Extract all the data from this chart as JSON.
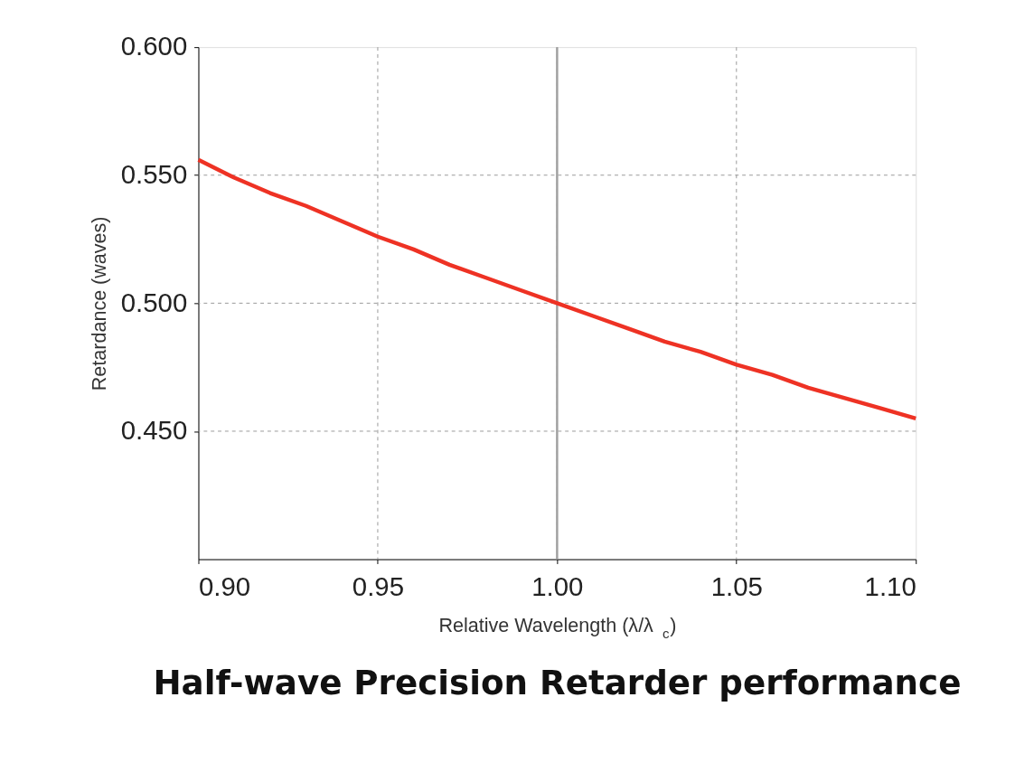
{
  "chart_data": {
    "type": "line",
    "title": "Half-wave Precision Retarder performance",
    "xlabel": "Relative Wavelength (λ/λ$_{c}$)",
    "ylabel": "Retardance (waves)",
    "x": [
      0.9,
      0.91,
      0.92,
      0.93,
      0.94,
      0.95,
      0.96,
      0.97,
      0.98,
      0.99,
      1.0,
      1.01,
      1.02,
      1.03,
      1.04,
      1.05,
      1.06,
      1.07,
      1.08,
      1.09,
      1.1
    ],
    "series": [
      {
        "color": "#ee3224",
        "values": [
          0.556,
          0.549,
          0.543,
          0.538,
          0.532,
          0.526,
          0.521,
          0.515,
          0.51,
          0.505,
          0.5,
          0.495,
          0.49,
          0.485,
          0.481,
          0.476,
          0.472,
          0.467,
          0.463,
          0.459,
          0.455
        ]
      }
    ],
    "xlim": [
      0.9,
      1.1
    ],
    "xticks": [
      {
        "value": 0.9,
        "label": "0.90"
      },
      {
        "value": 0.95,
        "label": "0.95"
      },
      {
        "value": 1.0,
        "label": "1.00"
      },
      {
        "value": 1.05,
        "label": "1.05"
      },
      {
        "value": 1.1,
        "label": "1.10"
      }
    ],
    "ylim": [
      0.4,
      0.6
    ],
    "yticks": [
      {
        "value": 0.45,
        "label": "0.450"
      },
      {
        "value": 0.5,
        "label": "0.500"
      },
      {
        "value": 0.55,
        "label": "0.550"
      },
      {
        "value": 0.6,
        "label": "0.600"
      }
    ],
    "ref_lines": [
      {
        "axis": "x",
        "value": 1.0,
        "color": "#a0a0a0",
        "line_style": "solid"
      }
    ],
    "grid": true,
    "marker": "none",
    "line_style": "solid"
  }
}
